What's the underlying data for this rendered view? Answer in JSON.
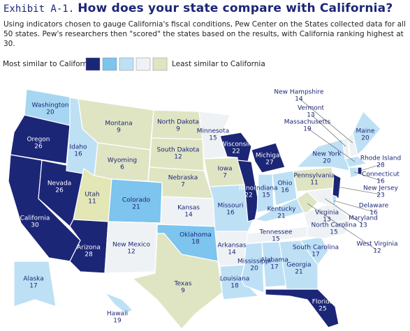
{
  "header": {
    "exhibit": "Exhibit A-1.",
    "title": "How does your state compare with California?",
    "intro": "Using indicators chosen to gauge California's fiscal conditions, Pew Center on the States collected data for all 50 states.  Pew's researchers then \"scored\" the states based on the results, with California ranking highest at 30."
  },
  "legend": {
    "most": "Most similar to California",
    "least": "Least similar to California",
    "colors": [
      "#1c2677",
      "#7dc4ee",
      "#bde0f5",
      "#eef2f5",
      "#dfe5c3"
    ]
  },
  "states": [
    {
      "name": "Washington",
      "score": 20,
      "color": "#a6d6f2"
    },
    {
      "name": "Oregon",
      "score": 26,
      "color": "#1c2677"
    },
    {
      "name": "California",
      "score": 30,
      "color": "#1c2677"
    },
    {
      "name": "Nevada",
      "score": 26,
      "color": "#1c2677"
    },
    {
      "name": "Idaho",
      "score": 16,
      "color": "#bde0f5"
    },
    {
      "name": "Montana",
      "score": 9,
      "color": "#dfe5c3"
    },
    {
      "name": "Wyoming",
      "score": 6,
      "color": "#dfe5c3"
    },
    {
      "name": "Utah",
      "score": 11,
      "color": "#e3e6b5"
    },
    {
      "name": "Arizona",
      "score": 28,
      "color": "#1c2677"
    },
    {
      "name": "Colorado",
      "score": 21,
      "color": "#7dc4ee"
    },
    {
      "name": "New Mexico",
      "score": 12,
      "color": "#eef2f5"
    },
    {
      "name": "North Dakota",
      "score": 9,
      "color": "#dfe5c3"
    },
    {
      "name": "South Dakota",
      "score": 12,
      "color": "#dfe5c3"
    },
    {
      "name": "Nebraska",
      "score": 7,
      "color": "#dfe5c3"
    },
    {
      "name": "Kansas",
      "score": 14,
      "color": "#eef2f5"
    },
    {
      "name": "Oklahoma",
      "score": 18,
      "color": "#7dc4ee"
    },
    {
      "name": "Texas",
      "score": 9,
      "color": "#dfe5c3"
    },
    {
      "name": "Minnesota",
      "score": 15,
      "color": "#eef2f5"
    },
    {
      "name": "Iowa",
      "score": 7,
      "color": "#dfe5c3"
    },
    {
      "name": "Missouri",
      "score": 16,
      "color": "#bde0f5"
    },
    {
      "name": "Arkansas",
      "score": 14,
      "color": "#eef2f5"
    },
    {
      "name": "Louisiana",
      "score": 18,
      "color": "#bde0f5"
    },
    {
      "name": "Wisconsin",
      "score": 22,
      "color": "#1c2677"
    },
    {
      "name": "Illinois",
      "score": 22,
      "color": "#1c2677"
    },
    {
      "name": "Michigan",
      "score": 27,
      "color": "#1c2677"
    },
    {
      "name": "Indiana",
      "score": 15,
      "color": "#bde0f5"
    },
    {
      "name": "Ohio",
      "score": 16,
      "color": "#bde0f5"
    },
    {
      "name": "Kentucky",
      "score": 21,
      "color": "#bde0f5"
    },
    {
      "name": "Tennessee",
      "score": 15,
      "color": "#eef2f5"
    },
    {
      "name": "Mississippi",
      "score": 20,
      "color": "#bde0f5"
    },
    {
      "name": "Alabama",
      "score": 17,
      "color": "#bde0f5"
    },
    {
      "name": "Georgia",
      "score": 21,
      "color": "#bde0f5"
    },
    {
      "name": "Florida",
      "score": 25,
      "color": "#1c2677"
    },
    {
      "name": "South Carolina",
      "score": 17,
      "color": "#bde0f5"
    },
    {
      "name": "North Carolina",
      "score": 15,
      "color": "#eef2f5"
    },
    {
      "name": "Virginia",
      "score": 13,
      "color": "#eef2f5"
    },
    {
      "name": "West Virginia",
      "score": 12,
      "color": "#dfe5c3"
    },
    {
      "name": "Pennsylvania",
      "score": 11,
      "color": "#dfe5c3"
    },
    {
      "name": "New York",
      "score": 20,
      "color": "#bde0f5"
    },
    {
      "name": "Vermont",
      "score": 13,
      "color": "#eef2f5"
    },
    {
      "name": "New Hampshire",
      "score": 14,
      "color": "#eef2f5"
    },
    {
      "name": "Maine",
      "score": 20,
      "color": "#bde0f5"
    },
    {
      "name": "Massachusetts",
      "score": 19,
      "color": "#bde0f5"
    },
    {
      "name": "Connecticut",
      "score": 16,
      "color": "#bde0f5"
    },
    {
      "name": "Rhode Island",
      "score": 28,
      "color": "#1c2677"
    },
    {
      "name": "New Jersey",
      "score": 23,
      "color": "#1c2677"
    },
    {
      "name": "Delaware",
      "score": 16,
      "color": "#bde0f5"
    },
    {
      "name": "Maryland",
      "score": 13,
      "color": "#eef2f5"
    },
    {
      "name": "Alaska",
      "score": 17,
      "color": "#bde0f5"
    },
    {
      "name": "Hawaii",
      "score": 19,
      "color": "#bde0f5"
    }
  ]
}
